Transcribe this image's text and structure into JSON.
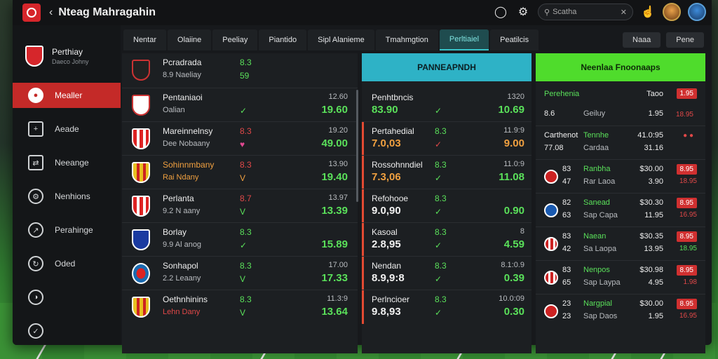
{
  "app": {
    "title": "Nteag Mahragahin",
    "back_icon": "chevron-left-icon"
  },
  "search": {
    "placeholder": "Scatha"
  },
  "sidebar": {
    "club_name": "Perthiay",
    "club_sub": "Daeco Johny",
    "items": [
      {
        "label": "Mealler",
        "icon": "user-icon",
        "active": true
      },
      {
        "label": "Aeade",
        "icon": "document-icon"
      },
      {
        "label": "Neeange",
        "icon": "transfer-icon"
      },
      {
        "label": "Nenhions",
        "icon": "gear-icon"
      },
      {
        "label": "Perahinge",
        "icon": "chart-icon"
      },
      {
        "label": "Oded",
        "icon": "shuffle-icon"
      },
      {
        "label": "",
        "icon": "ball-icon"
      },
      {
        "label": "",
        "icon": "check-icon"
      }
    ]
  },
  "tabs": [
    "Nentar",
    "Olaiine",
    "Peeliay",
    "Piantido",
    "Sipl Alanieme",
    "Tmahmgtion",
    "Perltiaiel",
    "Peatilcis"
  ],
  "active_tab": "Perltiaiel",
  "tab_buttons": [
    "Naaa",
    "Pene"
  ],
  "buttons": {
    "cyan": "PANNEAPNDH",
    "green": "Neenlaa Fnoonaaps"
  },
  "colors": {
    "accent_red": "#c42a28",
    "accent_cyan": "#2eb2c6",
    "accent_green": "#4fdc2c"
  },
  "col1": [
    {
      "name": "Pcradrada",
      "sub": "8.9 Naeliay",
      "d1": "8.3",
      "d2": "59",
      "v1": "",
      "v2": ""
    },
    {
      "name": "Pentaniaoi",
      "sub": "Oalian",
      "d1": "",
      "d2": "✓",
      "v1": "12.60",
      "v2": "19.60"
    },
    {
      "name": "Mareinnelnsy",
      "sub": "Dee Nobaany",
      "d1": "8.3",
      "d2": "♥",
      "v1": "19.20",
      "v2": "49.00"
    },
    {
      "name": "Sohinnmbany",
      "sub": "Rai Ndany",
      "d1": "8.3",
      "d2": "V",
      "v1": "13.90",
      "v2": "19.40"
    },
    {
      "name": "Perlanta",
      "sub": "9.2 N aany",
      "d1": "8.7",
      "d2": "V",
      "v1": "13.97",
      "v2": "13.39"
    },
    {
      "name": "Borlay",
      "sub": "9.9 Al anog",
      "d1": "8.3",
      "d2": "✓",
      "v1": "",
      "v2": "15.89"
    },
    {
      "name": "Sonhapol",
      "sub": "2.2 Leaany",
      "d1": "8.3",
      "d2": "V",
      "v1": "17.00",
      "v2": "17.33"
    },
    {
      "name": "Oethnhinins",
      "sub": "Lehn Dany",
      "d1": "8.3",
      "d2": "V",
      "v1": "11.3:9",
      "v2": "13.64"
    }
  ],
  "col2": [
    {
      "l1": "Penhtbncis",
      "l2": "83.90",
      "m1": "",
      "m2": "✓",
      "r1": "1320",
      "r2": "10.69"
    },
    {
      "l1": "Pertahedial",
      "l2": "7.0,03",
      "m1": "8.3",
      "m2": "✓",
      "r1": "11.9:9",
      "r2": "9.00"
    },
    {
      "l1": "Rossohnndiel",
      "l2": "7.3,06",
      "m1": "8.3",
      "m2": "✓",
      "r1": "11.0:9",
      "r2": "11.08"
    },
    {
      "l1": "Refohooe",
      "l2": "9.0,90",
      "m1": "8.3",
      "m2": "✓",
      "r1": "",
      "r2": "0.90"
    },
    {
      "l1": "Kasoal",
      "l2": "2.8,95",
      "m1": "8.3",
      "m2": "✓",
      "r1": "8",
      "r2": "4.59"
    },
    {
      "l1": "Nendan",
      "l2": "8.9,9:8",
      "m1": "8.3",
      "m2": "✓",
      "r1": "8.1:0.9",
      "r2": "0.39"
    },
    {
      "l1": "Perlncioer",
      "l2": "9.8,93",
      "m1": "8.3",
      "m2": "✓",
      "r1": "10.0:09",
      "r2": "0.30"
    }
  ],
  "col3": [
    {
      "a1": "",
      "a2": "",
      "b1": "Perehenia",
      "b2": "",
      "e1": "Taoo",
      "e2": "",
      "f1": "1.95",
      "f2": ""
    },
    {
      "a1": "8.6",
      "a2": "",
      "b1": "Geiluy",
      "b2": "",
      "e1": "1.95",
      "e2": "",
      "f1": "18.95",
      "f2": ""
    },
    {
      "a1": "Carthenot",
      "a2": "77.08",
      "b1": "Tennhe",
      "b2": "Cardaa",
      "e1": "41.0:95",
      "e2": "31.16",
      "f1": "● ●",
      "f2": ""
    },
    {
      "a1": "83",
      "a2": "47",
      "b1": "Ranbha",
      "b2": "Rar Laoa",
      "e1": "$30.00",
      "e2": "3.90",
      "f1": "8.95",
      "f2": "18.95"
    },
    {
      "a1": "82",
      "a2": "63",
      "b1": "Sanead",
      "b2": "Sap Capa",
      "e1": "$30.30",
      "e2": "11.95",
      "f1": "8.95",
      "f2": "16.95"
    },
    {
      "a1": "83",
      "a2": "42",
      "b1": "Naean",
      "b2": "Sa Laopa",
      "e1": "$30.35",
      "e2": "13.95",
      "f1": "8.95",
      "f2": "18.95"
    },
    {
      "a1": "83",
      "a2": "65",
      "b1": "Nenpos",
      "b2": "Sap Laypa",
      "e1": "$30.98",
      "e2": "4.95",
      "f1": "8.95",
      "f2": "1.98"
    },
    {
      "a1": "23",
      "a2": "23",
      "b1": "Nargpial",
      "b2": "Sap Daos",
      "e1": "$30.00",
      "e2": "1.95",
      "f1": "8.95",
      "f2": "16.95"
    }
  ]
}
